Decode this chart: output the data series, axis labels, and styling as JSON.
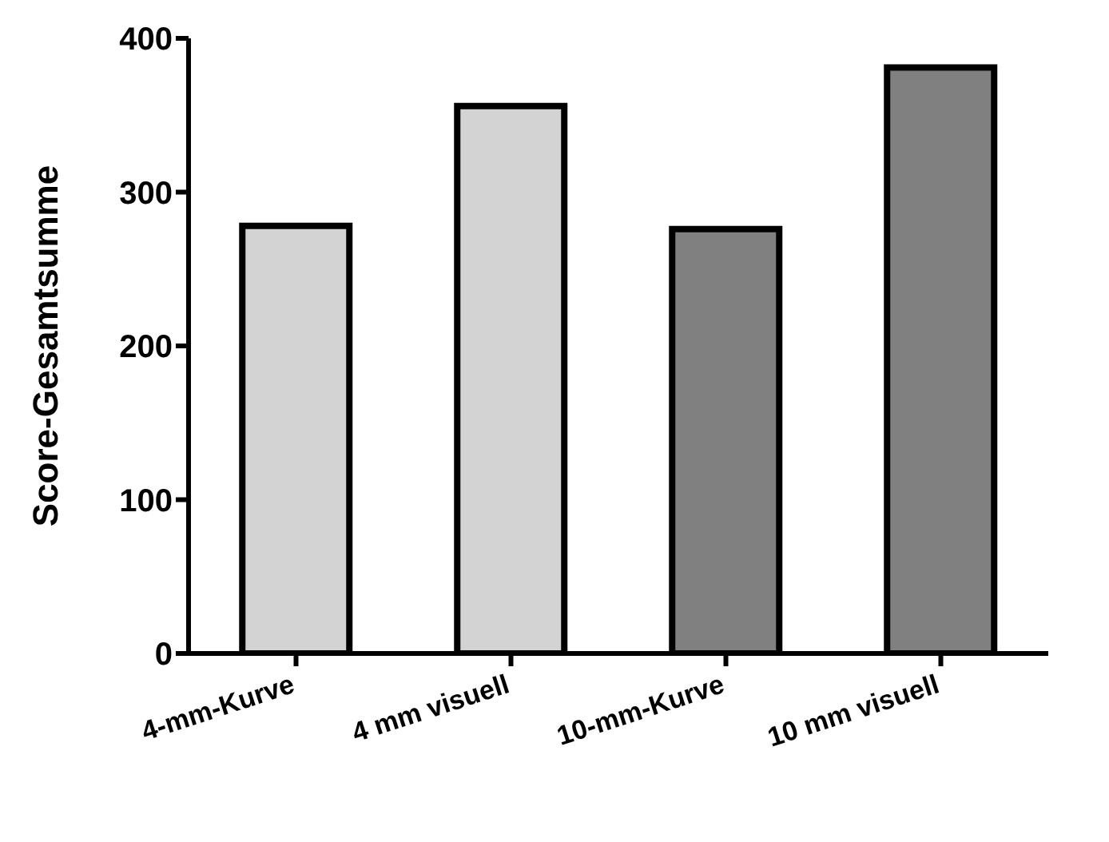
{
  "chart_data": {
    "type": "bar",
    "ylabel": "Score-Gesamtsumme",
    "categories": [
      "4-mm-Kurve",
      "4 mm visuell",
      "10-mm-Kurve",
      "10 mm visuell"
    ],
    "values": [
      278,
      356,
      276,
      381
    ],
    "colors": [
      "#d3d3d3",
      "#d3d3d3",
      "#808080",
      "#808080"
    ],
    "ylim": [
      0,
      400
    ],
    "yticks": [
      0,
      100,
      200,
      300,
      400
    ],
    "grid": false,
    "legend": false
  }
}
